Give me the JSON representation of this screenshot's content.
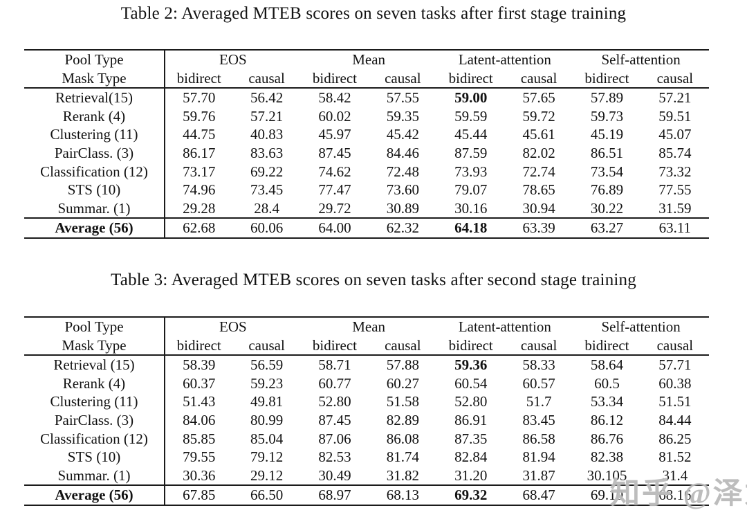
{
  "watermark": {
    "text": "知乎 @泽龙",
    "color": "#b2b2b2"
  },
  "tables": [
    {
      "caption": "Table 2: Averaged MTEB scores on seven tasks after first stage training",
      "header": {
        "pool_type_label": "Pool Type",
        "mask_type_label": "Mask Type",
        "groups": [
          "EOS",
          "Mean",
          "Latent-attention",
          "Self-attention"
        ],
        "subheaders": [
          "bidirect",
          "causal",
          "bidirect",
          "causal",
          "bidirect",
          "causal",
          "bidirect",
          "causal"
        ]
      },
      "rows": [
        {
          "label": "Retrieval(15)",
          "values": [
            "57.70",
            "56.42",
            "58.42",
            "57.55",
            "59.00",
            "57.65",
            "57.89",
            "57.21"
          ],
          "bold": [
            4
          ]
        },
        {
          "label": "Rerank (4)",
          "values": [
            "59.76",
            "57.21",
            "60.02",
            "59.35",
            "59.59",
            "59.72",
            "59.73",
            "59.51"
          ],
          "bold": []
        },
        {
          "label": "Clustering (11)",
          "values": [
            "44.75",
            "40.83",
            "45.97",
            "45.42",
            "45.44",
            "45.61",
            "45.19",
            "45.07"
          ],
          "bold": []
        },
        {
          "label": "PairClass. (3)",
          "values": [
            "86.17",
            "83.63",
            "87.45",
            "84.46",
            "87.59",
            "82.02",
            "86.51",
            "85.74"
          ],
          "bold": []
        },
        {
          "label": "Classification (12)",
          "values": [
            "73.17",
            "69.22",
            "74.62",
            "72.48",
            "73.93",
            "72.74",
            "73.54",
            "73.32"
          ],
          "bold": []
        },
        {
          "label": "STS (10)",
          "values": [
            "74.96",
            "73.45",
            "77.47",
            "73.60",
            "79.07",
            "78.65",
            "76.89",
            "77.55"
          ],
          "bold": []
        },
        {
          "label": "Summar. (1)",
          "values": [
            "29.28",
            "28.4",
            "29.72",
            "30.89",
            "30.16",
            "30.94",
            "30.22",
            "31.59"
          ],
          "bold": []
        }
      ],
      "footer": {
        "label": "Average (56)",
        "values": [
          "62.68",
          "60.06",
          "64.00",
          "62.32",
          "64.18",
          "63.39",
          "63.27",
          "63.11"
        ],
        "bold": [
          4
        ]
      }
    },
    {
      "caption": "Table 3: Averaged MTEB scores on seven tasks after second stage training",
      "header": {
        "pool_type_label": "Pool Type",
        "mask_type_label": "Mask Type",
        "groups": [
          "EOS",
          "Mean",
          "Latent-attention",
          "Self-attention"
        ],
        "subheaders": [
          "bidirect",
          "causal",
          "bidirect",
          "causal",
          "bidirect",
          "causal",
          "bidirect",
          "causal"
        ]
      },
      "rows": [
        {
          "label": "Retrieval (15)",
          "values": [
            "58.39",
            "56.59",
            "58.71",
            "57.88",
            "59.36",
            "58.33",
            "58.64",
            "57.71"
          ],
          "bold": [
            4
          ]
        },
        {
          "label": "Rerank (4)",
          "values": [
            "60.37",
            "59.23",
            "60.77",
            "60.27",
            "60.54",
            "60.57",
            "60.5",
            "60.38"
          ],
          "bold": []
        },
        {
          "label": "Clustering (11)",
          "values": [
            "51.43",
            "49.81",
            "52.80",
            "51.58",
            "52.80",
            "51.7",
            "53.34",
            "51.51"
          ],
          "bold": []
        },
        {
          "label": "PairClass. (3)",
          "values": [
            "84.06",
            "80.99",
            "87.45",
            "82.89",
            "86.91",
            "83.45",
            "86.12",
            "84.44"
          ],
          "bold": []
        },
        {
          "label": "Classification (12)",
          "values": [
            "85.85",
            "85.04",
            "87.06",
            "86.08",
            "87.35",
            "86.58",
            "86.76",
            "86.25"
          ],
          "bold": []
        },
        {
          "label": "STS (10)",
          "values": [
            "79.55",
            "79.12",
            "82.53",
            "81.74",
            "82.84",
            "81.94",
            "82.38",
            "81.52"
          ],
          "bold": []
        },
        {
          "label": "Summar. (1)",
          "values": [
            "30.36",
            "29.12",
            "30.49",
            "31.82",
            "31.20",
            "31.87",
            "30.105",
            "31.4"
          ],
          "bold": []
        }
      ],
      "footer": {
        "label": "Average (56)",
        "values": [
          "67.85",
          "66.50",
          "68.97",
          "68.13",
          "69.32",
          "68.47",
          "69.10",
          "68.16"
        ],
        "bold": [
          4
        ]
      }
    }
  ]
}
